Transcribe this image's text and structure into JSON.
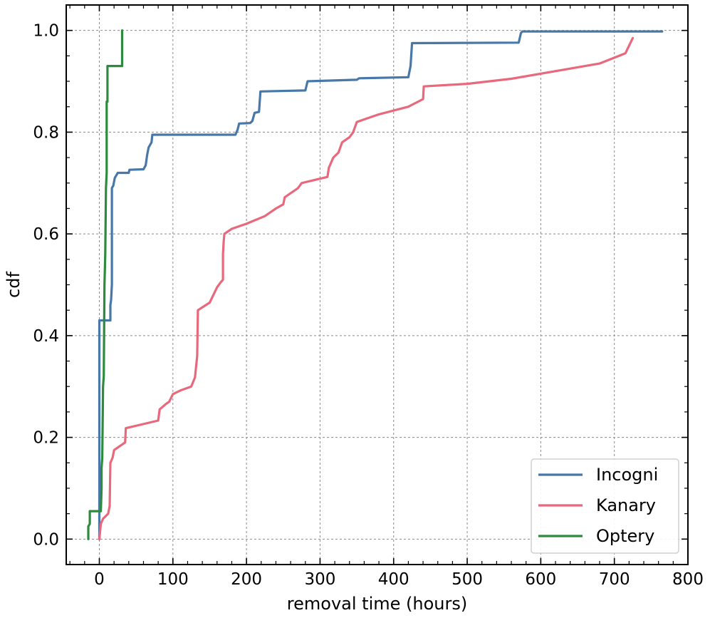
{
  "chart_data": {
    "type": "line",
    "title": "",
    "xlabel": "removal time (hours)",
    "ylabel": "cdf",
    "xlim": [
      -45,
      800
    ],
    "ylim": [
      -0.05,
      1.05
    ],
    "x_ticks": [
      0,
      100,
      200,
      300,
      400,
      500,
      600,
      700,
      800
    ],
    "y_ticks": [
      0.0,
      0.2,
      0.4,
      0.6,
      0.8,
      1.0
    ],
    "x_tick_labels": [
      "0",
      "100",
      "200",
      "300",
      "400",
      "500",
      "600",
      "700",
      "800"
    ],
    "y_tick_labels": [
      "0.0",
      "0.2",
      "0.4",
      "0.6",
      "0.8",
      "1.0"
    ],
    "grid": true,
    "legend_position": "lower-right",
    "series": [
      {
        "name": "Incogni",
        "color": "#4878a8",
        "points": [
          [
            0,
            0
          ],
          [
            0,
            0.43
          ],
          [
            15,
            0.43
          ],
          [
            15,
            0.46
          ],
          [
            16,
            0.47
          ],
          [
            17,
            0.5
          ],
          [
            17,
            0.69
          ],
          [
            19,
            0.695
          ],
          [
            21,
            0.71
          ],
          [
            23,
            0.715
          ],
          [
            25,
            0.72
          ],
          [
            40,
            0.72
          ],
          [
            41,
            0.726
          ],
          [
            60,
            0.727
          ],
          [
            63,
            0.735
          ],
          [
            65,
            0.755
          ],
          [
            67,
            0.77
          ],
          [
            71,
            0.78
          ],
          [
            72,
            0.795
          ],
          [
            185,
            0.795
          ],
          [
            188,
            0.805
          ],
          [
            190,
            0.817
          ],
          [
            205,
            0.818
          ],
          [
            208,
            0.822
          ],
          [
            211,
            0.838
          ],
          [
            217,
            0.84
          ],
          [
            219,
            0.88
          ],
          [
            280,
            0.882
          ],
          [
            283,
            0.9
          ],
          [
            350,
            0.903
          ],
          [
            353,
            0.906
          ],
          [
            420,
            0.908
          ],
          [
            423,
            0.93
          ],
          [
            425,
            0.975
          ],
          [
            570,
            0.976
          ],
          [
            573,
            0.995
          ],
          [
            575,
            0.998
          ],
          [
            765,
            0.998
          ]
        ]
      },
      {
        "name": "Kanary",
        "color": "#e8687c",
        "points": [
          [
            0,
            0
          ],
          [
            2,
            0.03
          ],
          [
            5,
            0.04
          ],
          [
            12,
            0.05
          ],
          [
            14,
            0.065
          ],
          [
            15,
            0.15
          ],
          [
            18,
            0.16
          ],
          [
            20,
            0.175
          ],
          [
            35,
            0.19
          ],
          [
            36,
            0.218
          ],
          [
            80,
            0.233
          ],
          [
            82,
            0.255
          ],
          [
            90,
            0.265
          ],
          [
            95,
            0.27
          ],
          [
            100,
            0.285
          ],
          [
            110,
            0.292
          ],
          [
            125,
            0.3
          ],
          [
            130,
            0.318
          ],
          [
            133,
            0.36
          ],
          [
            134,
            0.45
          ],
          [
            150,
            0.465
          ],
          [
            155,
            0.48
          ],
          [
            160,
            0.495
          ],
          [
            165,
            0.505
          ],
          [
            168,
            0.51
          ],
          [
            168,
            0.56
          ],
          [
            169,
            0.585
          ],
          [
            170,
            0.6
          ],
          [
            180,
            0.61
          ],
          [
            200,
            0.62
          ],
          [
            225,
            0.635
          ],
          [
            240,
            0.65
          ],
          [
            250,
            0.658
          ],
          [
            252,
            0.672
          ],
          [
            260,
            0.68
          ],
          [
            265,
            0.685
          ],
          [
            270,
            0.69
          ],
          [
            275,
            0.7
          ],
          [
            310,
            0.712
          ],
          [
            312,
            0.73
          ],
          [
            318,
            0.75
          ],
          [
            325,
            0.76
          ],
          [
            330,
            0.78
          ],
          [
            340,
            0.79
          ],
          [
            345,
            0.8
          ],
          [
            350,
            0.82
          ],
          [
            380,
            0.835
          ],
          [
            420,
            0.85
          ],
          [
            440,
            0.865
          ],
          [
            441,
            0.89
          ],
          [
            500,
            0.895
          ],
          [
            560,
            0.905
          ],
          [
            620,
            0.92
          ],
          [
            680,
            0.935
          ],
          [
            715,
            0.955
          ],
          [
            725,
            0.985
          ]
        ]
      },
      {
        "name": "Optery",
        "color": "#2d8a3e",
        "points": [
          [
            -15,
            0
          ],
          [
            -15,
            0.025
          ],
          [
            -13,
            0.03
          ],
          [
            -13,
            0.055
          ],
          [
            2,
            0.055
          ],
          [
            3,
            0.1
          ],
          [
            3,
            0.14
          ],
          [
            4,
            0.16
          ],
          [
            5,
            0.3
          ],
          [
            6,
            0.32
          ],
          [
            7,
            0.5
          ],
          [
            8,
            0.56
          ],
          [
            9,
            0.69
          ],
          [
            10,
            0.72
          ],
          [
            10,
            0.86
          ],
          [
            11,
            0.86
          ],
          [
            11,
            0.93
          ],
          [
            31,
            0.93
          ],
          [
            31,
            1.0
          ]
        ]
      }
    ]
  }
}
